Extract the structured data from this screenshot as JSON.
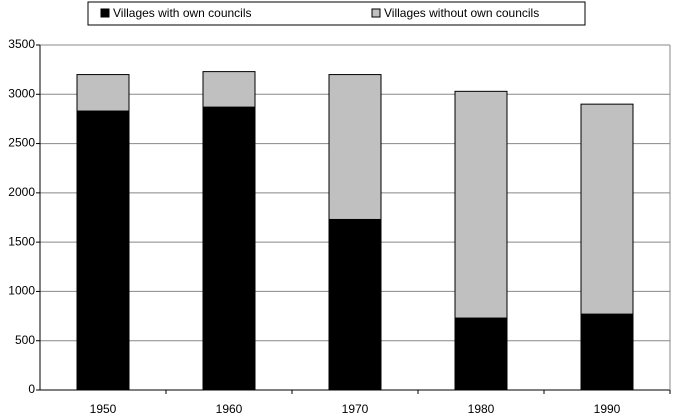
{
  "chart_data": {
    "type": "stacked-bar",
    "categories": [
      "1950",
      "1960",
      "1970",
      "1980",
      "1990"
    ],
    "series": [
      {
        "name": "Villages with own councils",
        "color": "#000000",
        "values": [
          2830,
          2870,
          1730,
          730,
          770
        ]
      },
      {
        "name": "Villages without own councils",
        "color": "#c0c0c0",
        "values": [
          370,
          360,
          1470,
          2300,
          2130
        ]
      }
    ],
    "ylim": [
      0,
      3500
    ],
    "yticks": [
      0,
      500,
      1000,
      1500,
      2000,
      2500,
      3000,
      3500
    ],
    "grid": true
  }
}
